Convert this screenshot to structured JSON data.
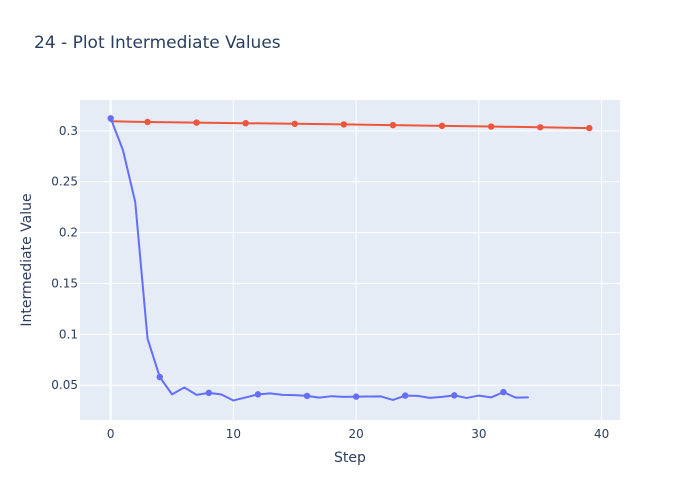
{
  "chart_data": {
    "type": "line",
    "title": "24 - Plot Intermediate Values",
    "xlabel": "Step",
    "ylabel": "Intermediate Value",
    "xlim": [
      -2.5,
      41.5
    ],
    "ylim": [
      0.0158,
      0.3303
    ],
    "x_ticks": [
      0,
      10,
      20,
      30,
      40
    ],
    "y_ticks": [
      0.05,
      0.1,
      0.15,
      0.2,
      0.25,
      0.3
    ],
    "x_tick_labels": [
      "0",
      "10",
      "20",
      "30",
      "40"
    ],
    "y_tick_labels": [
      "0.05",
      "0.1",
      "0.15",
      "0.2",
      "0.25",
      "0.3"
    ],
    "grid": true,
    "legend": false,
    "series": [
      {
        "color": "#ef553b",
        "x": [
          0,
          3,
          7,
          11,
          15,
          19,
          23,
          27,
          31,
          35,
          39
        ],
        "values": [
          0.3094,
          0.3087,
          0.3081,
          0.3075,
          0.3069,
          0.3063,
          0.3056,
          0.3049,
          0.3042,
          0.3035,
          0.3027
        ],
        "marker_indices": [
          1,
          2,
          3,
          4,
          5,
          6,
          7,
          8,
          9,
          10
        ]
      },
      {
        "color": "#636efa",
        "x": [
          0,
          1,
          2,
          3,
          4,
          5,
          6,
          7,
          8,
          9,
          10,
          11,
          12,
          13,
          14,
          15,
          16,
          17,
          18,
          19,
          20,
          21,
          22,
          23,
          24,
          25,
          26,
          27,
          28,
          29,
          30,
          31,
          32,
          33,
          34
        ],
        "values": [
          0.3123,
          0.281,
          0.23,
          0.096,
          0.058,
          0.041,
          0.0478,
          0.0405,
          0.0425,
          0.041,
          0.035,
          0.038,
          0.041,
          0.042,
          0.0405,
          0.0402,
          0.0395,
          0.0378,
          0.0392,
          0.0385,
          0.0388,
          0.0389,
          0.039,
          0.0355,
          0.0398,
          0.0395,
          0.0375,
          0.0385,
          0.04,
          0.0375,
          0.0398,
          0.038,
          0.0432,
          0.0378,
          0.038
        ],
        "marker_indices": [
          0,
          4,
          8,
          12,
          16,
          20,
          24,
          28,
          32
        ]
      }
    ]
  }
}
